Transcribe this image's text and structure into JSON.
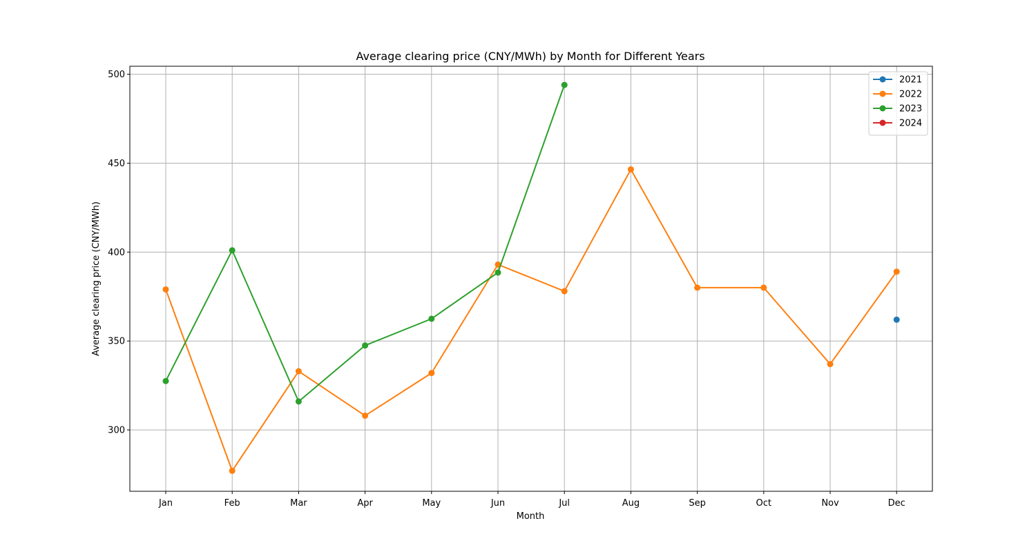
{
  "chart_data": {
    "type": "line",
    "title": "Average clearing price (CNY/MWh) by Month for Different Years",
    "xlabel": "Month",
    "ylabel": "Average clearing price (CNY/MWh)",
    "categories": [
      "Jan",
      "Feb",
      "Mar",
      "Apr",
      "May",
      "Jun",
      "Jul",
      "Aug",
      "Sep",
      "Oct",
      "Nov",
      "Dec"
    ],
    "ylim": [
      265.5,
      504.5
    ],
    "yticks": [
      300,
      350,
      400,
      450,
      500
    ],
    "grid": true,
    "legend_position": "top-right",
    "series": [
      {
        "name": "2021",
        "color": "#1f77b4",
        "values": [
          null,
          null,
          null,
          null,
          null,
          null,
          null,
          null,
          null,
          null,
          null,
          362
        ]
      },
      {
        "name": "2022",
        "color": "#ff7f0e",
        "values": [
          379,
          277,
          333,
          308,
          332,
          393,
          378,
          446.5,
          380,
          380,
          337,
          389
        ]
      },
      {
        "name": "2023",
        "color": "#2ca02c",
        "values": [
          327.5,
          401,
          316,
          347.5,
          362.5,
          388.5,
          494,
          null,
          null,
          null,
          null,
          null
        ]
      },
      {
        "name": "2024",
        "color": "#d62728",
        "values": [
          null,
          null,
          null,
          null,
          null,
          null,
          null,
          null,
          null,
          null,
          null,
          null
        ]
      }
    ]
  }
}
